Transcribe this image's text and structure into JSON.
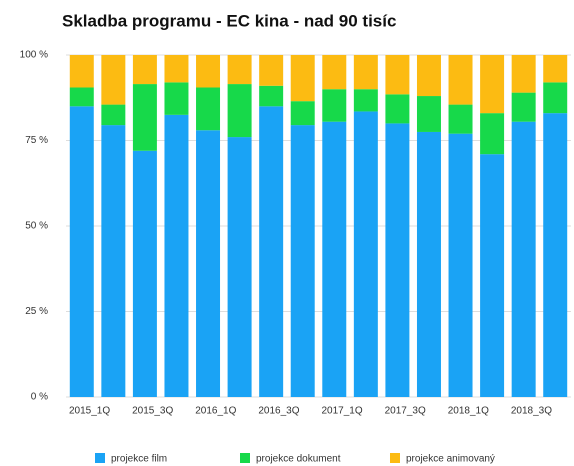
{
  "chart_data": {
    "type": "stacked_bar",
    "title": "Skladba programu - EC kina - nad 90 tisíc",
    "categories": [
      "2015_1Q",
      null,
      "2015_3Q",
      null,
      "2016_1Q",
      null,
      "2016_3Q",
      null,
      "2017_1Q",
      null,
      "2017_3Q",
      null,
      "2018_1Q",
      null,
      "2018_3Q",
      null
    ],
    "series": [
      {
        "name": "projekce film",
        "color": "#1aa3f5",
        "values": [
          85,
          79.5,
          72,
          82.5,
          78,
          76,
          85,
          79.5,
          80.5,
          83.5,
          80,
          77.5,
          77,
          71,
          80.5,
          83
        ]
      },
      {
        "name": "projekce dokument",
        "color": "#17d94a",
        "values": [
          5.5,
          6,
          19.5,
          9.5,
          12.5,
          15.5,
          6,
          7,
          9.5,
          6.5,
          8.5,
          10.5,
          8.5,
          12,
          8.5,
          9
        ]
      },
      {
        "name": "projekce animovaný",
        "color": "#fcbb12",
        "values": [
          9.5,
          14.5,
          8.5,
          8,
          9.5,
          8.5,
          9,
          13.5,
          10,
          10,
          11.5,
          12,
          14.5,
          17,
          11,
          8
        ]
      }
    ],
    "ylim": [
      0,
      100
    ],
    "yticks": [
      {
        "value": 0,
        "label": "0 %"
      },
      {
        "value": 25,
        "label": "25 %"
      },
      {
        "value": 50,
        "label": "50 %"
      },
      {
        "value": 75,
        "label": "75 %"
      },
      {
        "value": 100,
        "label": "100 %"
      }
    ],
    "grid": true,
    "legend": "bottom"
  }
}
